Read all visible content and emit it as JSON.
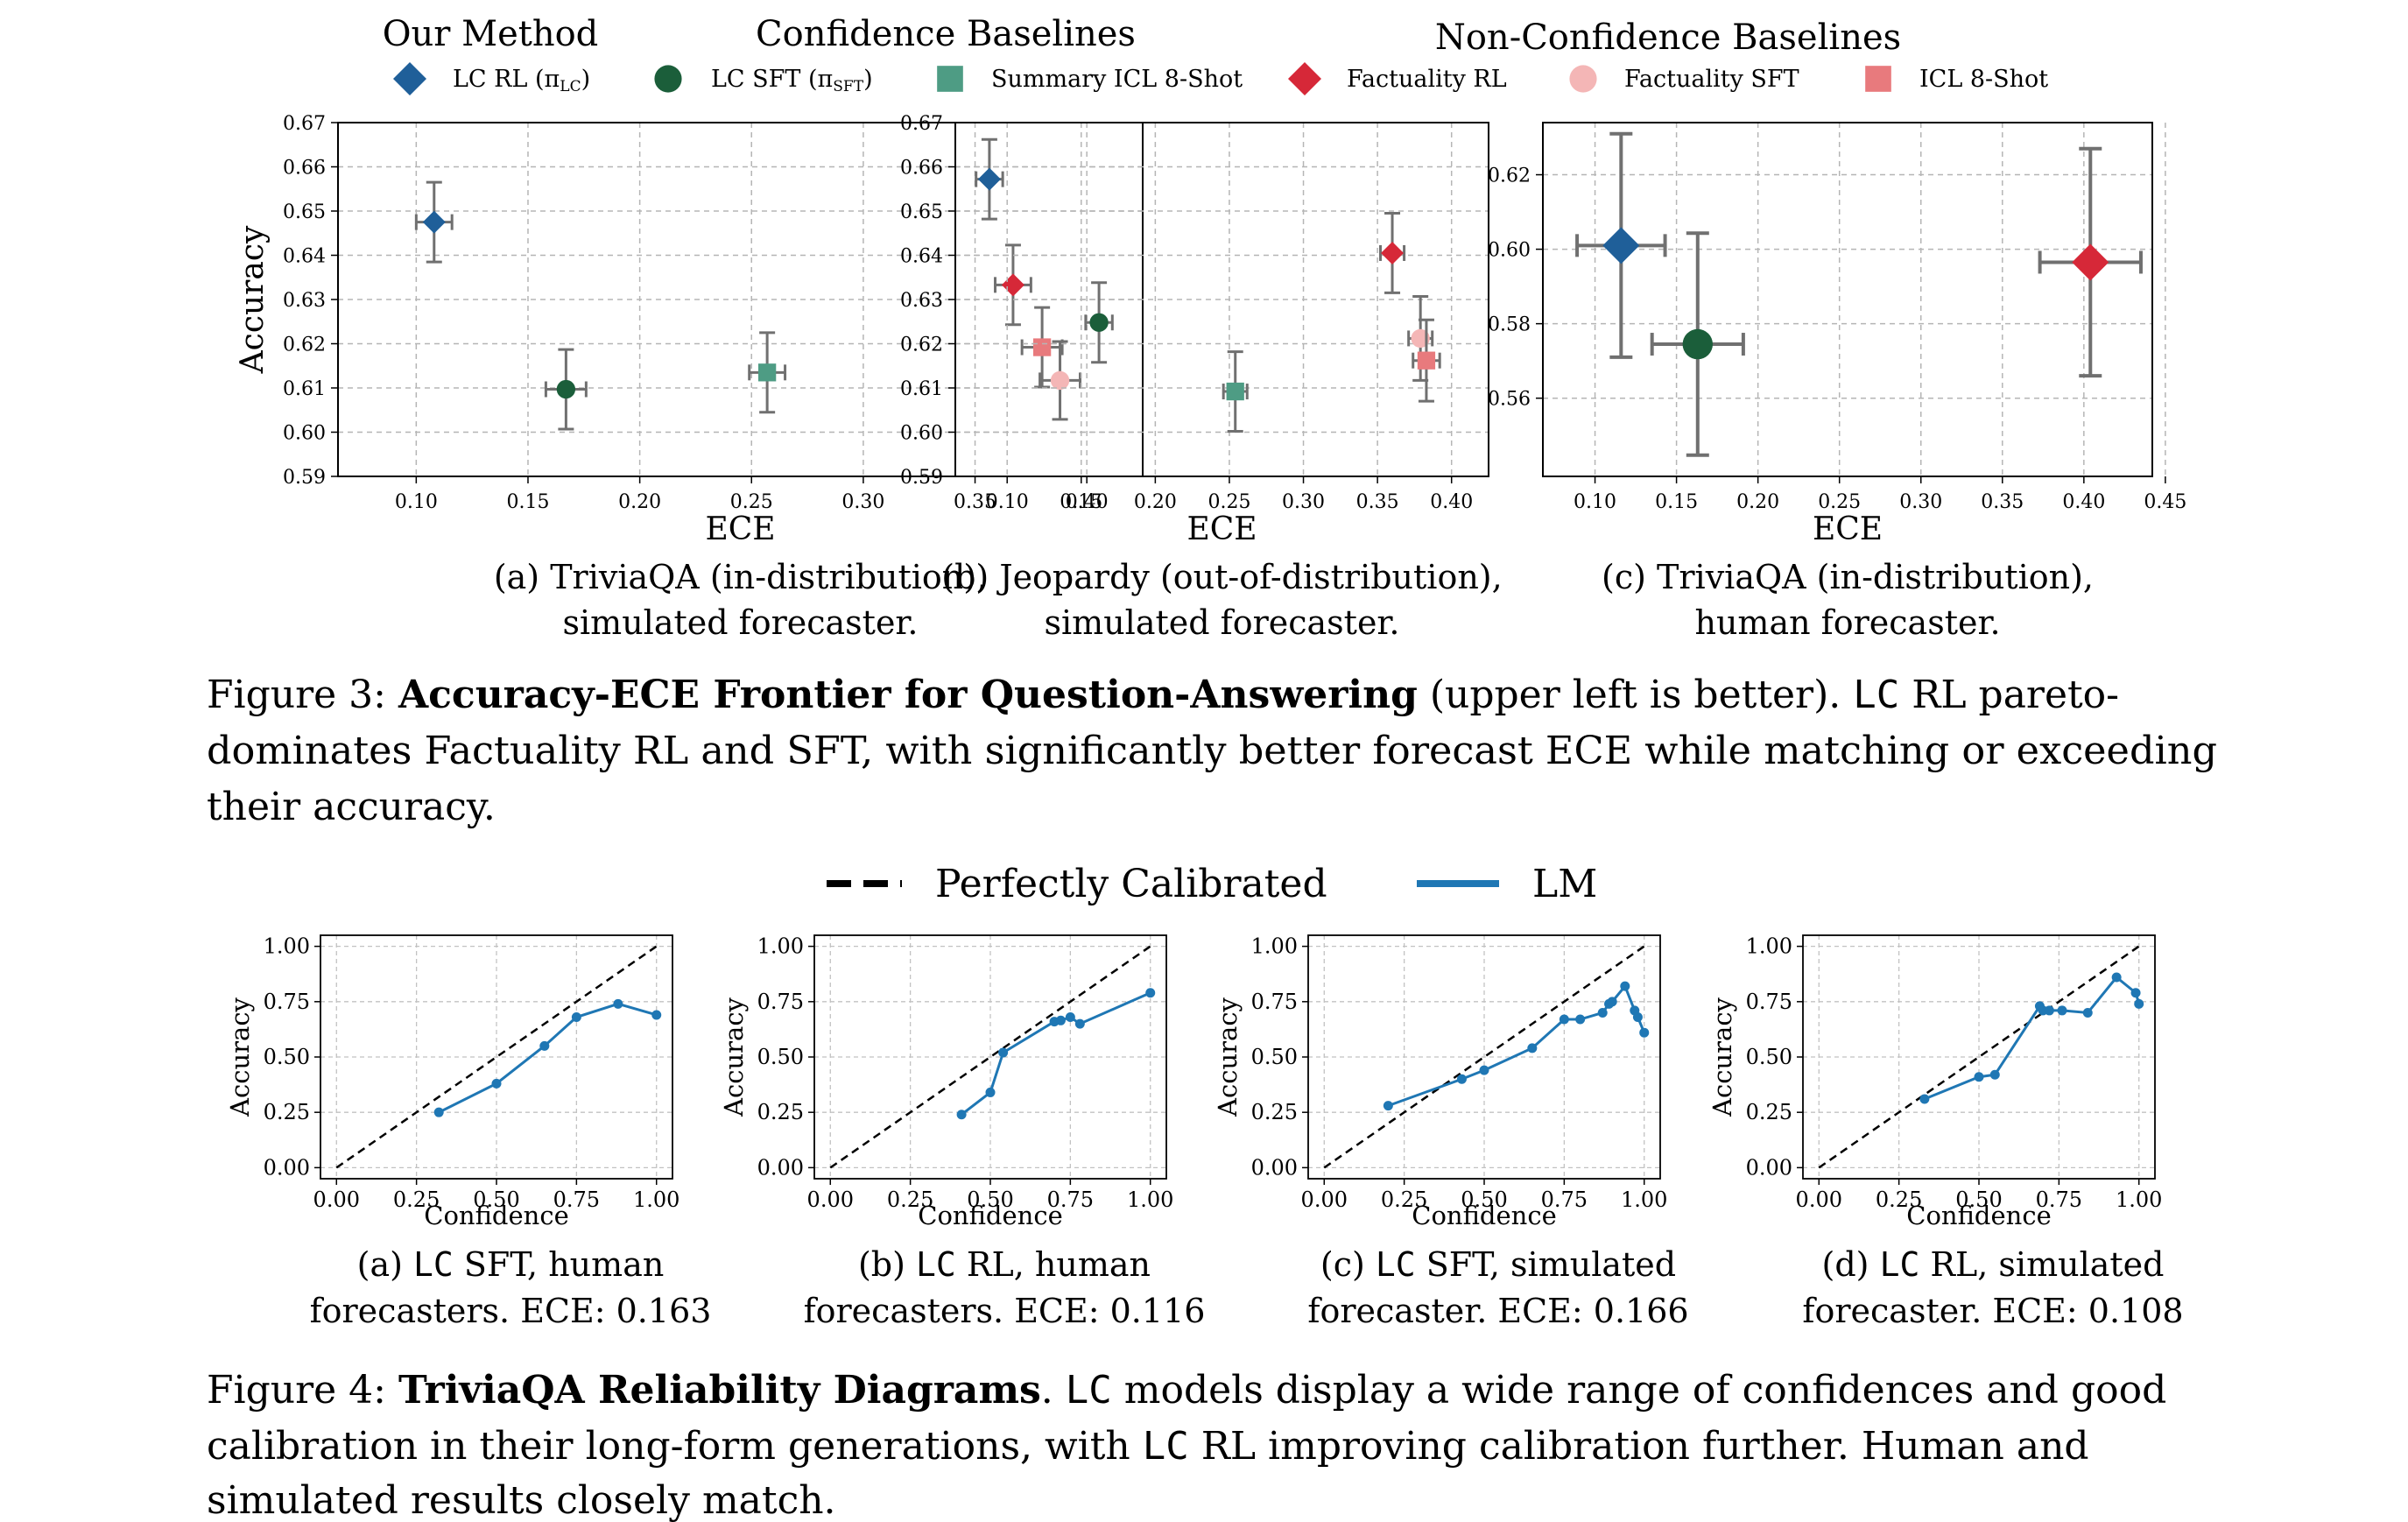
{
  "figure3": {
    "legend": {
      "groups": [
        "Our Method",
        "Confidence Baselines",
        "Non-Confidence Baselines"
      ],
      "entries": [
        {
          "id": "lc_rl",
          "label": "LC RL (π",
          "sub": "LC",
          "label_end": ")",
          "marker": "diamond",
          "color": "#1f5f99",
          "icon": "diamond-icon"
        },
        {
          "id": "lc_sft",
          "label": "LC SFT (π",
          "sub": "SFT",
          "label_end": ")",
          "marker": "circle",
          "color": "#1b5e3a",
          "icon": "circle-icon"
        },
        {
          "id": "summary_icl",
          "label": "Summary ICL 8-Shot",
          "sub": "",
          "label_end": "",
          "marker": "square",
          "color": "#4e9c84",
          "icon": "square-icon"
        },
        {
          "id": "fact_rl",
          "label": "Factuality RL",
          "sub": "",
          "label_end": "",
          "marker": "diamond",
          "color": "#d62838",
          "icon": "diamond-icon"
        },
        {
          "id": "fact_sft",
          "label": "Factuality SFT",
          "sub": "",
          "label_end": "",
          "marker": "circle",
          "color": "#f4b6b6",
          "icon": "circle-icon"
        },
        {
          "id": "icl_8shot",
          "label": "ICL 8-Shot",
          "sub": "",
          "label_end": "",
          "marker": "square",
          "color": "#e87a7d",
          "icon": "square-icon"
        }
      ]
    },
    "caption": {
      "prefix": "Figure 3: ",
      "bold": "Accuracy-ECE Frontier for Question-Answering",
      "line1_rest": " (upper left is better).  ",
      "lc": "LC",
      "line1_end": " RL pareto-",
      "line2": "dominates Factuality RL and SFT, with significantly better forecast ECE while matching or exceeding",
      "line3": "their accuracy."
    }
  },
  "figure4": {
    "legend": {
      "perfect_label": "Perfectly Calibrated",
      "lm_label": "LM",
      "lm_color": "#1f77b4"
    },
    "caption": {
      "prefix": "Figure 4: ",
      "bold": "TriviaQA Reliability Diagrams",
      "line1_rest": ". ",
      "lc1": "LC",
      "line1_end": " models display a wide range of confidences and good",
      "line2_start": "calibration in their long-form generations, with ",
      "lc2": "LC",
      "line2_end": " RL improving calibration further. Human and",
      "line3": "simulated results closely match."
    }
  },
  "chart_data": [
    {
      "type": "scatter",
      "figure": "Figure 3",
      "panel": "a",
      "xlabel": "ECE",
      "ylabel": "Accuracy",
      "xlim": [
        0.065,
        0.425
      ],
      "ylim": [
        0.59,
        0.67
      ],
      "xticks": [
        "0.10",
        "0.15",
        "0.20",
        "0.25",
        "0.30",
        "0.35",
        "0.40"
      ],
      "yticks": [
        "0.59",
        "0.60",
        "0.61",
        "0.62",
        "0.63",
        "0.64",
        "0.65",
        "0.66",
        "0.67"
      ],
      "grid": true,
      "caption": [
        "(a) TriviaQA (in-distribution),",
        "simulated forecaster."
      ],
      "points": [
        {
          "series": "LC RL",
          "x": 0.108,
          "y": 0.6475,
          "xerr": 0.008,
          "yerr": 0.009
        },
        {
          "series": "LC SFT",
          "x": 0.167,
          "y": 0.6097,
          "xerr": 0.009,
          "yerr": 0.009
        },
        {
          "series": "Summary ICL 8-Shot",
          "x": 0.257,
          "y": 0.6135,
          "xerr": 0.008,
          "yerr": 0.009
        },
        {
          "series": "Factuality RL",
          "x": 0.367,
          "y": 0.6333,
          "xerr": 0.008,
          "yerr": 0.009
        },
        {
          "series": "ICL 8-Shot",
          "x": 0.38,
          "y": 0.6192,
          "xerr": 0.009,
          "yerr": 0.009
        },
        {
          "series": "Factuality SFT",
          "x": 0.388,
          "y": 0.6117,
          "xerr": 0.009,
          "yerr": 0.0088
        }
      ]
    },
    {
      "type": "scatter",
      "figure": "Figure 3",
      "panel": "b",
      "xlabel": "ECE",
      "ylabel": "",
      "xlim": [
        0.065,
        0.425
      ],
      "ylim": [
        0.59,
        0.67
      ],
      "xticks": [
        "0.10",
        "0.15",
        "0.20",
        "0.25",
        "0.30",
        "0.35",
        "0.40"
      ],
      "yticks": [
        "0.59",
        "0.60",
        "0.61",
        "0.62",
        "0.63",
        "0.64",
        "0.65",
        "0.66",
        "0.67"
      ],
      "grid": true,
      "caption": [
        "(b) Jeopardy (out-of-distribution),",
        "simulated forecaster."
      ],
      "points": [
        {
          "series": "LC RL",
          "x": 0.088,
          "y": 0.6572,
          "xerr": 0.009,
          "yerr": 0.009
        },
        {
          "series": "LC SFT",
          "x": 0.162,
          "y": 0.6248,
          "xerr": 0.009,
          "yerr": 0.009
        },
        {
          "series": "Summary ICL 8-Shot",
          "x": 0.254,
          "y": 0.6092,
          "xerr": 0.008,
          "yerr": 0.009
        },
        {
          "series": "Factuality RL",
          "x": 0.36,
          "y": 0.6405,
          "xerr": 0.008,
          "yerr": 0.009
        },
        {
          "series": "Factuality SFT",
          "x": 0.379,
          "y": 0.6212,
          "xerr": 0.008,
          "yerr": 0.0095
        },
        {
          "series": "ICL 8-Shot",
          "x": 0.383,
          "y": 0.6162,
          "xerr": 0.009,
          "yerr": 0.0092
        }
      ]
    },
    {
      "type": "scatter",
      "figure": "Figure 3",
      "panel": "c",
      "xlabel": "ECE",
      "ylabel": "",
      "xlim": [
        0.068,
        0.442
      ],
      "ylim": [
        0.539,
        0.634
      ],
      "xticks": [
        "0.10",
        "0.15",
        "0.20",
        "0.25",
        "0.30",
        "0.35",
        "0.40",
        "0.45"
      ],
      "yticks": [
        "0.56",
        "0.58",
        "0.60",
        "0.62"
      ],
      "grid": true,
      "caption": [
        "(c) TriviaQA (in-distribution),",
        "human forecaster."
      ],
      "points": [
        {
          "series": "LC RL",
          "x": 0.116,
          "y": 0.601,
          "xerr": 0.027,
          "yerr": 0.03
        },
        {
          "series": "LC SFT",
          "x": 0.163,
          "y": 0.5745,
          "xerr": 0.028,
          "yerr": 0.0298
        },
        {
          "series": "Factuality RL",
          "x": 0.404,
          "y": 0.5965,
          "xerr": 0.031,
          "yerr": 0.0305
        }
      ]
    },
    {
      "type": "line",
      "figure": "Figure 4",
      "panel": "a",
      "xlabel": "Confidence",
      "ylabel": "Accuracy",
      "xlim": [
        -0.05,
        1.05
      ],
      "ylim": [
        -0.05,
        1.05
      ],
      "xticks": [
        "0.00",
        "0.25",
        "0.50",
        "0.75",
        "1.00"
      ],
      "yticks": [
        "0.00",
        "0.25",
        "0.50",
        "0.75",
        "1.00"
      ],
      "grid": true,
      "caption": {
        "pre": "(a) ",
        "lc": "LC",
        "post": " SFT, human",
        "line2": "forecasters. ECE: 0.163"
      },
      "series": [
        {
          "name": "LM",
          "x": [
            0.32,
            0.5,
            0.65,
            0.75,
            0.88,
            1.0
          ],
          "y": [
            0.25,
            0.38,
            0.55,
            0.68,
            0.74,
            0.69
          ]
        }
      ]
    },
    {
      "type": "line",
      "figure": "Figure 4",
      "panel": "b",
      "xlabel": "Confidence",
      "ylabel": "Accuracy",
      "xlim": [
        -0.05,
        1.05
      ],
      "ylim": [
        -0.05,
        1.05
      ],
      "xticks": [
        "0.00",
        "0.25",
        "0.50",
        "0.75",
        "1.00"
      ],
      "yticks": [
        "0.00",
        "0.25",
        "0.50",
        "0.75",
        "1.00"
      ],
      "grid": true,
      "caption": {
        "pre": "(b) ",
        "lc": "LC",
        "post": " RL, human",
        "line2": "forecasters. ECE: 0.116"
      },
      "series": [
        {
          "name": "LM",
          "x": [
            0.41,
            0.5,
            0.54,
            0.7,
            0.72,
            0.75,
            0.78,
            1.0
          ],
          "y": [
            0.24,
            0.34,
            0.52,
            0.66,
            0.665,
            0.68,
            0.65,
            0.79
          ]
        }
      ]
    },
    {
      "type": "line",
      "figure": "Figure 4",
      "panel": "c",
      "xlabel": "Confidence",
      "ylabel": "Accuracy",
      "xlim": [
        -0.05,
        1.05
      ],
      "ylim": [
        -0.05,
        1.05
      ],
      "xticks": [
        "0.00",
        "0.25",
        "0.50",
        "0.75",
        "1.00"
      ],
      "yticks": [
        "0.00",
        "0.25",
        "0.50",
        "0.75",
        "1.00"
      ],
      "grid": true,
      "caption": {
        "pre": "(c) ",
        "lc": "LC",
        "post": " SFT, simulated",
        "line2": "forecaster. ECE: 0.166"
      },
      "series": [
        {
          "name": "LM",
          "x": [
            0.2,
            0.43,
            0.5,
            0.65,
            0.75,
            0.8,
            0.87,
            0.89,
            0.9,
            0.94,
            0.97,
            0.98,
            1.0
          ],
          "y": [
            0.28,
            0.4,
            0.44,
            0.54,
            0.67,
            0.67,
            0.7,
            0.74,
            0.75,
            0.82,
            0.71,
            0.68,
            0.61
          ]
        }
      ]
    },
    {
      "type": "line",
      "figure": "Figure 4",
      "panel": "d",
      "xlabel": "Confidence",
      "ylabel": "Accuracy",
      "xlim": [
        -0.05,
        1.05
      ],
      "ylim": [
        -0.05,
        1.05
      ],
      "xticks": [
        "0.00",
        "0.25",
        "0.50",
        "0.75",
        "1.00"
      ],
      "yticks": [
        "0.00",
        "0.25",
        "0.50",
        "0.75",
        "1.00"
      ],
      "grid": true,
      "caption": {
        "pre": "(d) ",
        "lc": "LC",
        "post": " RL, simulated",
        "line2": "forecaster. ECE: 0.108"
      },
      "series": [
        {
          "name": "LM",
          "x": [
            0.33,
            0.5,
            0.55,
            0.69,
            0.7,
            0.72,
            0.76,
            0.84,
            0.93,
            0.99,
            1.0
          ],
          "y": [
            0.31,
            0.41,
            0.42,
            0.73,
            0.71,
            0.71,
            0.71,
            0.7,
            0.86,
            0.79,
            0.74
          ]
        }
      ]
    }
  ]
}
